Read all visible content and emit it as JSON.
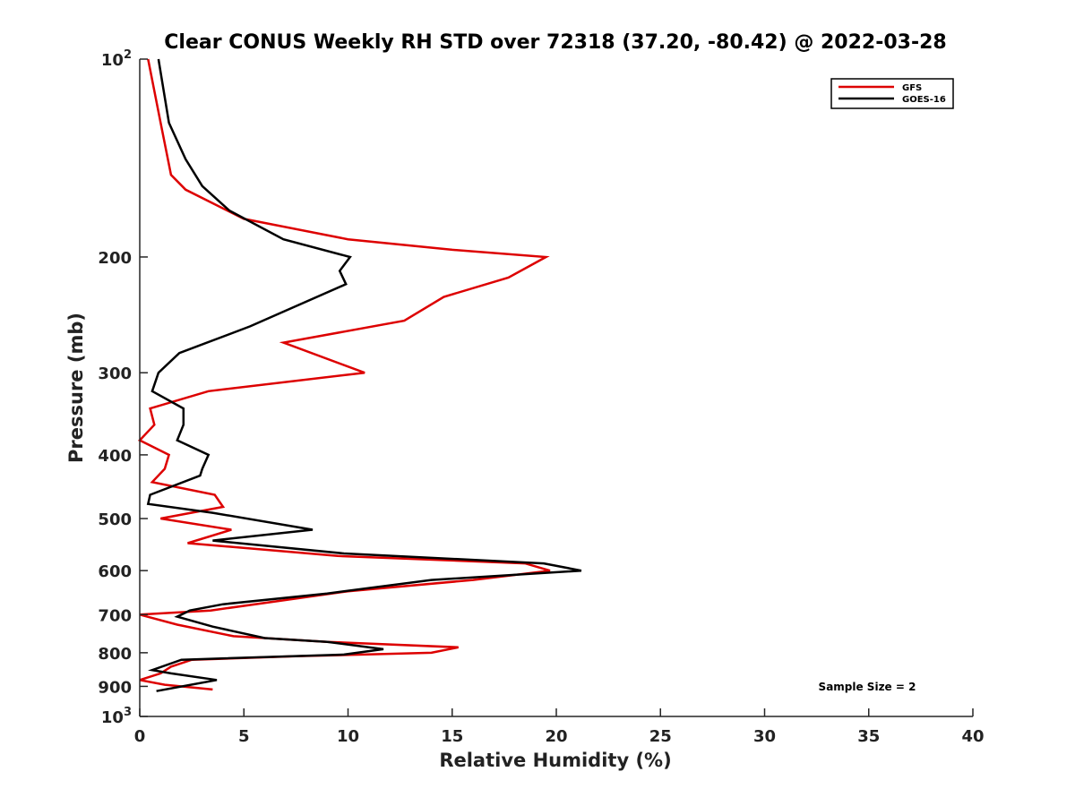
{
  "chart_data": {
    "type": "line",
    "title": "Clear CONUS Weekly RH STD over 72318 (37.20, -80.42) @ 2022-03-28",
    "xlabel": "Relative Humidity (%)",
    "ylabel": "Pressure (mb)",
    "xlim": [
      0,
      40
    ],
    "ylim": [
      100,
      1000
    ],
    "yscale": "log",
    "y_reversed": true,
    "grid": false,
    "legend_position": "top-right",
    "xticks": [
      0,
      5,
      10,
      15,
      20,
      25,
      30,
      35,
      40
    ],
    "xtick_labels": [
      "0",
      "5",
      "10",
      "15",
      "20",
      "25",
      "30",
      "35",
      "40"
    ],
    "yticks": [
      {
        "value": 100,
        "base": "10",
        "exp": "2"
      },
      {
        "value": 200,
        "label": "200"
      },
      {
        "value": 300,
        "label": "300"
      },
      {
        "value": 400,
        "label": "400"
      },
      {
        "value": 500,
        "label": "500"
      },
      {
        "value": 600,
        "label": "600"
      },
      {
        "value": 700,
        "label": "700"
      },
      {
        "value": 800,
        "label": "800"
      },
      {
        "value": 900,
        "label": "900"
      },
      {
        "value": 1000,
        "base": "10",
        "exp": "3"
      }
    ],
    "annotation": "Sample Size = 2",
    "series": [
      {
        "name": "GFS",
        "color": "#dd0000",
        "points": [
          [
            0.4,
            100
          ],
          [
            1.0,
            125
          ],
          [
            1.5,
            150
          ],
          [
            2.2,
            158
          ],
          [
            5.0,
            175
          ],
          [
            10.0,
            188
          ],
          [
            15.0,
            195
          ],
          [
            19.5,
            200
          ],
          [
            17.7,
            215
          ],
          [
            14.6,
            230
          ],
          [
            12.7,
            250
          ],
          [
            6.9,
            270
          ],
          [
            10.8,
            300
          ],
          [
            3.3,
            320
          ],
          [
            0.5,
            340
          ],
          [
            0.7,
            360
          ],
          [
            0.0,
            380
          ],
          [
            1.4,
            400
          ],
          [
            1.2,
            420
          ],
          [
            0.6,
            440
          ],
          [
            3.6,
            460
          ],
          [
            4.0,
            480
          ],
          [
            1.0,
            500
          ],
          [
            4.4,
            520
          ],
          [
            2.3,
            545
          ],
          [
            9.5,
            570
          ],
          [
            18.5,
            585
          ],
          [
            19.7,
            600
          ],
          [
            16.0,
            620
          ],
          [
            10.0,
            645
          ],
          [
            3.4,
            690
          ],
          [
            0.0,
            700
          ],
          [
            1.8,
            725
          ],
          [
            4.5,
            755
          ],
          [
            9.0,
            770
          ],
          [
            15.3,
            785
          ],
          [
            14.0,
            800
          ],
          [
            7.5,
            810
          ],
          [
            2.5,
            820
          ],
          [
            1.5,
            840
          ],
          [
            1.0,
            860
          ],
          [
            0.0,
            880
          ],
          [
            1.2,
            895
          ],
          [
            3.5,
            910
          ]
        ]
      },
      {
        "name": "GOES-16",
        "color": "#000000",
        "points": [
          [
            0.9,
            100
          ],
          [
            1.4,
            125
          ],
          [
            2.2,
            142
          ],
          [
            3.0,
            156
          ],
          [
            4.3,
            170
          ],
          [
            6.9,
            188
          ],
          [
            10.1,
            200
          ],
          [
            9.6,
            210
          ],
          [
            9.9,
            220
          ],
          [
            5.3,
            255
          ],
          [
            1.9,
            280
          ],
          [
            0.9,
            300
          ],
          [
            0.6,
            320
          ],
          [
            2.1,
            340
          ],
          [
            2.1,
            360
          ],
          [
            1.8,
            380
          ],
          [
            3.3,
            400
          ],
          [
            3.0,
            420
          ],
          [
            2.9,
            430
          ],
          [
            0.5,
            460
          ],
          [
            0.4,
            475
          ],
          [
            3.5,
            490
          ],
          [
            8.3,
            520
          ],
          [
            3.5,
            540
          ],
          [
            9.8,
            565
          ],
          [
            19.4,
            585
          ],
          [
            21.2,
            600
          ],
          [
            14.0,
            620
          ],
          [
            9.0,
            650
          ],
          [
            4.0,
            675
          ],
          [
            2.4,
            690
          ],
          [
            1.8,
            705
          ],
          [
            3.5,
            730
          ],
          [
            6.0,
            760
          ],
          [
            9.0,
            770
          ],
          [
            11.7,
            790
          ],
          [
            9.8,
            805
          ],
          [
            2.0,
            820
          ],
          [
            0.6,
            850
          ],
          [
            1.5,
            860
          ],
          [
            3.7,
            880
          ],
          [
            0.8,
            915
          ]
        ]
      }
    ]
  }
}
